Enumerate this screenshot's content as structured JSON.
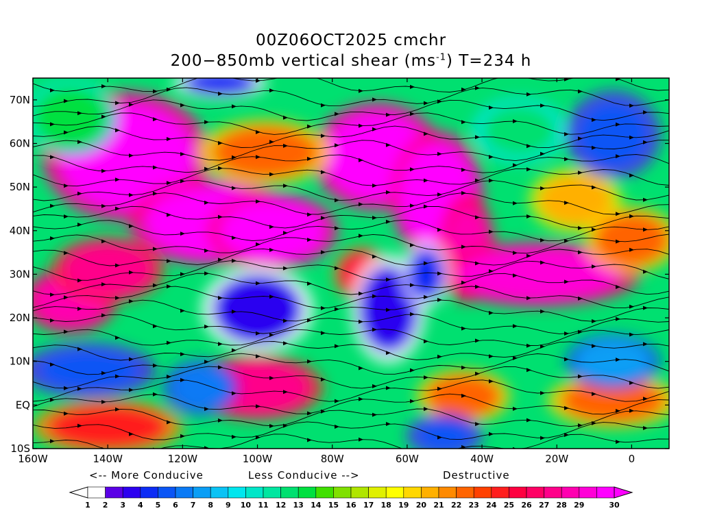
{
  "title": {
    "line1": "00Z06OCT2025 cmchr",
    "line2_prefix": "200−850mb vertical shear (ms",
    "line2_sup": "-1",
    "line2_suffix": ") T=234 h"
  },
  "map": {
    "lon_range": [
      -160,
      10
    ],
    "lat_range": [
      -10,
      75
    ],
    "lat_ticks": [
      {
        "value": 70,
        "label": "70N"
      },
      {
        "value": 60,
        "label": "60N"
      },
      {
        "value": 50,
        "label": "50N"
      },
      {
        "value": 40,
        "label": "40N"
      },
      {
        "value": 30,
        "label": "30N"
      },
      {
        "value": 20,
        "label": "20N"
      },
      {
        "value": 10,
        "label": "10N"
      },
      {
        "value": 0,
        "label": "EQ"
      },
      {
        "value": -10,
        "label": "10S"
      }
    ],
    "lon_ticks": [
      {
        "value": -160,
        "label": "160W"
      },
      {
        "value": -140,
        "label": "140W"
      },
      {
        "value": -120,
        "label": "120W"
      },
      {
        "value": -100,
        "label": "100W"
      },
      {
        "value": -80,
        "label": "80W"
      },
      {
        "value": -60,
        "label": "60W"
      },
      {
        "value": -40,
        "label": "40W"
      },
      {
        "value": -20,
        "label": "20W"
      },
      {
        "value": 0,
        "label": "0"
      }
    ],
    "field": "vertical wind shear magnitude (m/s) with streamlines",
    "blobs": [
      {
        "lon": -135,
        "lat": 57,
        "rx": 18,
        "ry": 12,
        "v": 30
      },
      {
        "lon": -112,
        "lat": 42,
        "rx": 18,
        "ry": 8,
        "v": 30
      },
      {
        "lon": -96,
        "lat": 40,
        "rx": 14,
        "ry": 7,
        "v": 30
      },
      {
        "lon": -68,
        "lat": 57,
        "rx": 14,
        "ry": 10,
        "v": 30
      },
      {
        "lon": -52,
        "lat": 48,
        "rx": 10,
        "ry": 12,
        "v": 30
      },
      {
        "lon": -44,
        "lat": 36,
        "rx": 6,
        "ry": 10,
        "v": 28
      },
      {
        "lon": -25,
        "lat": 30,
        "rx": 22,
        "ry": 6,
        "v": 29
      },
      {
        "lon": -150,
        "lat": 24,
        "rx": 10,
        "ry": 6,
        "v": 28
      },
      {
        "lon": -140,
        "lat": 31,
        "rx": 12,
        "ry": 6,
        "v": 27
      },
      {
        "lon": -100,
        "lat": 4,
        "rx": 14,
        "ry": 6,
        "v": 27
      },
      {
        "lon": -140,
        "lat": -5,
        "rx": 16,
        "ry": 5,
        "v": 24
      },
      {
        "lon": -45,
        "lat": 2,
        "rx": 10,
        "ry": 5,
        "v": 22
      },
      {
        "lon": -5,
        "lat": 1,
        "rx": 14,
        "ry": 5,
        "v": 22
      },
      {
        "lon": -72,
        "lat": 30,
        "rx": 6,
        "ry": 5,
        "v": 25
      },
      {
        "lon": -98,
        "lat": 58,
        "rx": 14,
        "ry": 6,
        "v": 22
      },
      {
        "lon": -15,
        "lat": 47,
        "rx": 10,
        "ry": 6,
        "v": 20
      },
      {
        "lon": 0,
        "lat": 38,
        "rx": 10,
        "ry": 6,
        "v": 22
      },
      {
        "lon": -100,
        "lat": 22,
        "rx": 12,
        "ry": 8,
        "v": 3
      },
      {
        "lon": -65,
        "lat": 22,
        "rx": 8,
        "ry": 10,
        "v": 3
      },
      {
        "lon": -55,
        "lat": 30,
        "rx": 5,
        "ry": 6,
        "v": 4
      },
      {
        "lon": -145,
        "lat": 8,
        "rx": 14,
        "ry": 5,
        "v": 5
      },
      {
        "lon": -115,
        "lat": 4,
        "rx": 8,
        "ry": 5,
        "v": 6
      },
      {
        "lon": -5,
        "lat": 62,
        "rx": 10,
        "ry": 8,
        "v": 5
      },
      {
        "lon": -110,
        "lat": 74,
        "rx": 10,
        "ry": 3,
        "v": 4
      },
      {
        "lon": -50,
        "lat": -7,
        "rx": 8,
        "ry": 4,
        "v": 5
      },
      {
        "lon": -5,
        "lat": 10,
        "rx": 10,
        "ry": 5,
        "v": 7
      },
      {
        "lon": -30,
        "lat": 63,
        "rx": 10,
        "ry": 6,
        "v": 12
      },
      {
        "lon": -150,
        "lat": 66,
        "rx": 10,
        "ry": 7,
        "v": 13
      }
    ]
  },
  "legend": {
    "more_conducive": "<-- More Conducive",
    "less_conducive": "Less Conducive -->",
    "destructive": "Destructive",
    "colorbar": {
      "labels": [
        "1",
        "2",
        "3",
        "4",
        "5",
        "6",
        "7",
        "8",
        "9",
        "10",
        "11",
        "12",
        "13",
        "14",
        "15",
        "16",
        "17",
        "18",
        "19",
        "20",
        "21",
        "22",
        "23",
        "24",
        "25",
        "26",
        "27",
        "28",
        "29",
        "30"
      ],
      "colors": [
        "#ffffff",
        "#5a00e6",
        "#2c00f0",
        "#0c2cf5",
        "#0a55f5",
        "#0a7af5",
        "#0a9ef5",
        "#0ac3f5",
        "#00e6ee",
        "#00e6c8",
        "#00e6a0",
        "#00e070",
        "#00e040",
        "#40e000",
        "#80e000",
        "#b0e600",
        "#e0f000",
        "#ffff00",
        "#ffd700",
        "#ffb000",
        "#ff8a00",
        "#ff6400",
        "#ff4000",
        "#ff1e1e",
        "#ff0040",
        "#ff0064",
        "#ff008a",
        "#ff00b0",
        "#ff00d7",
        "#ff00ff"
      ]
    }
  }
}
